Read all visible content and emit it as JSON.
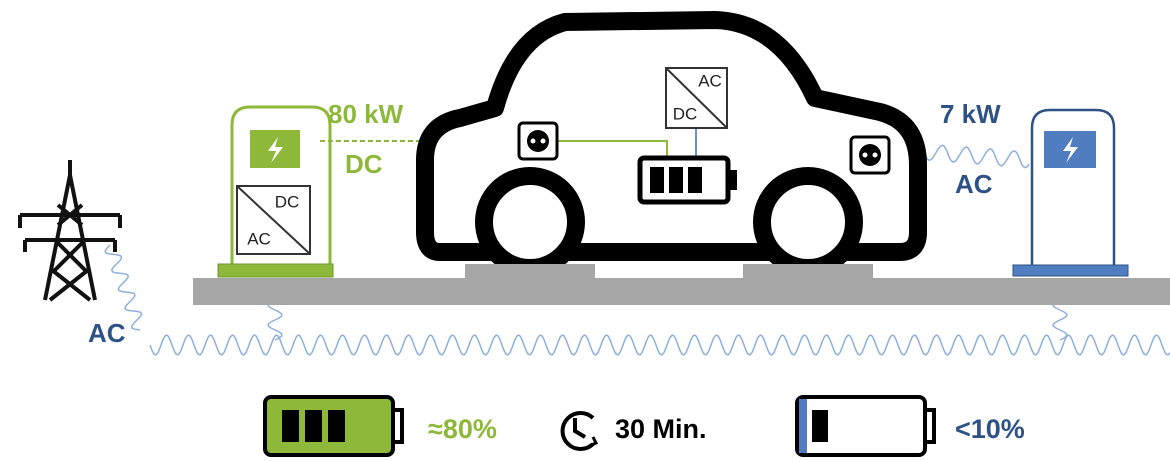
{
  "dc_charger": {
    "power": "80 kW",
    "current": "DC",
    "converter": {
      "top": "DC",
      "bottom": "AC"
    }
  },
  "car_converter": {
    "top": "AC",
    "bottom": "DC"
  },
  "ac_charger": {
    "power": "7 kW",
    "current": "AC"
  },
  "grid": {
    "current": "AC"
  },
  "legend": {
    "dc_result": "≈80%",
    "time": "30 Min.",
    "ac_result": "<10%"
  }
}
